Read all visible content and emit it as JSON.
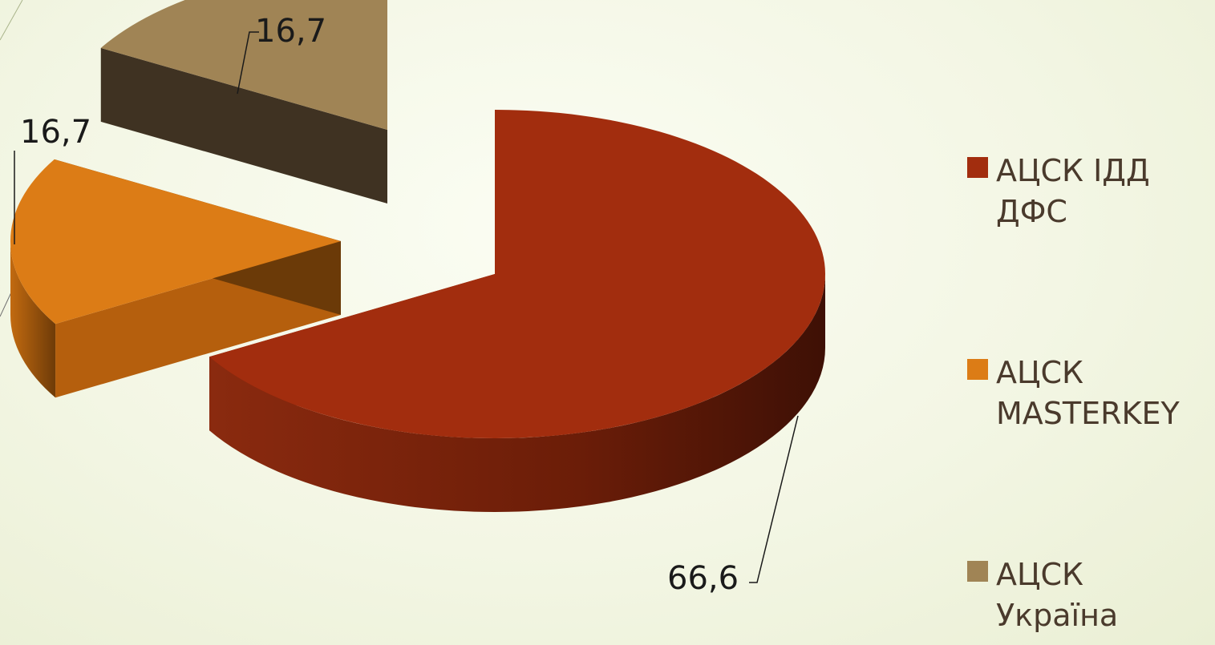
{
  "chart_data": {
    "type": "pie",
    "style": "3d-exploded",
    "categories": [
      "АЦСК ІДД ДФС",
      "АЦСК MASTERKEY",
      "АЦСК Україна"
    ],
    "values": [
      66.6,
      16.7,
      16.7
    ],
    "value_labels": [
      "66,6",
      "16,7",
      "16,7"
    ],
    "colors": [
      "#a22d0e",
      "#dc7c16",
      "#a08455"
    ],
    "legend": [
      {
        "lines": [
          "АЦСК ІДД",
          "ДФС"
        ],
        "color": "#a22d0e"
      },
      {
        "lines": [
          "АЦСК",
          "MASTERKEY"
        ],
        "color": "#dc7c16"
      },
      {
        "lines": [
          "АЦСК",
          "Україна"
        ],
        "color": "#a08455"
      }
    ],
    "legend_position": "right"
  }
}
